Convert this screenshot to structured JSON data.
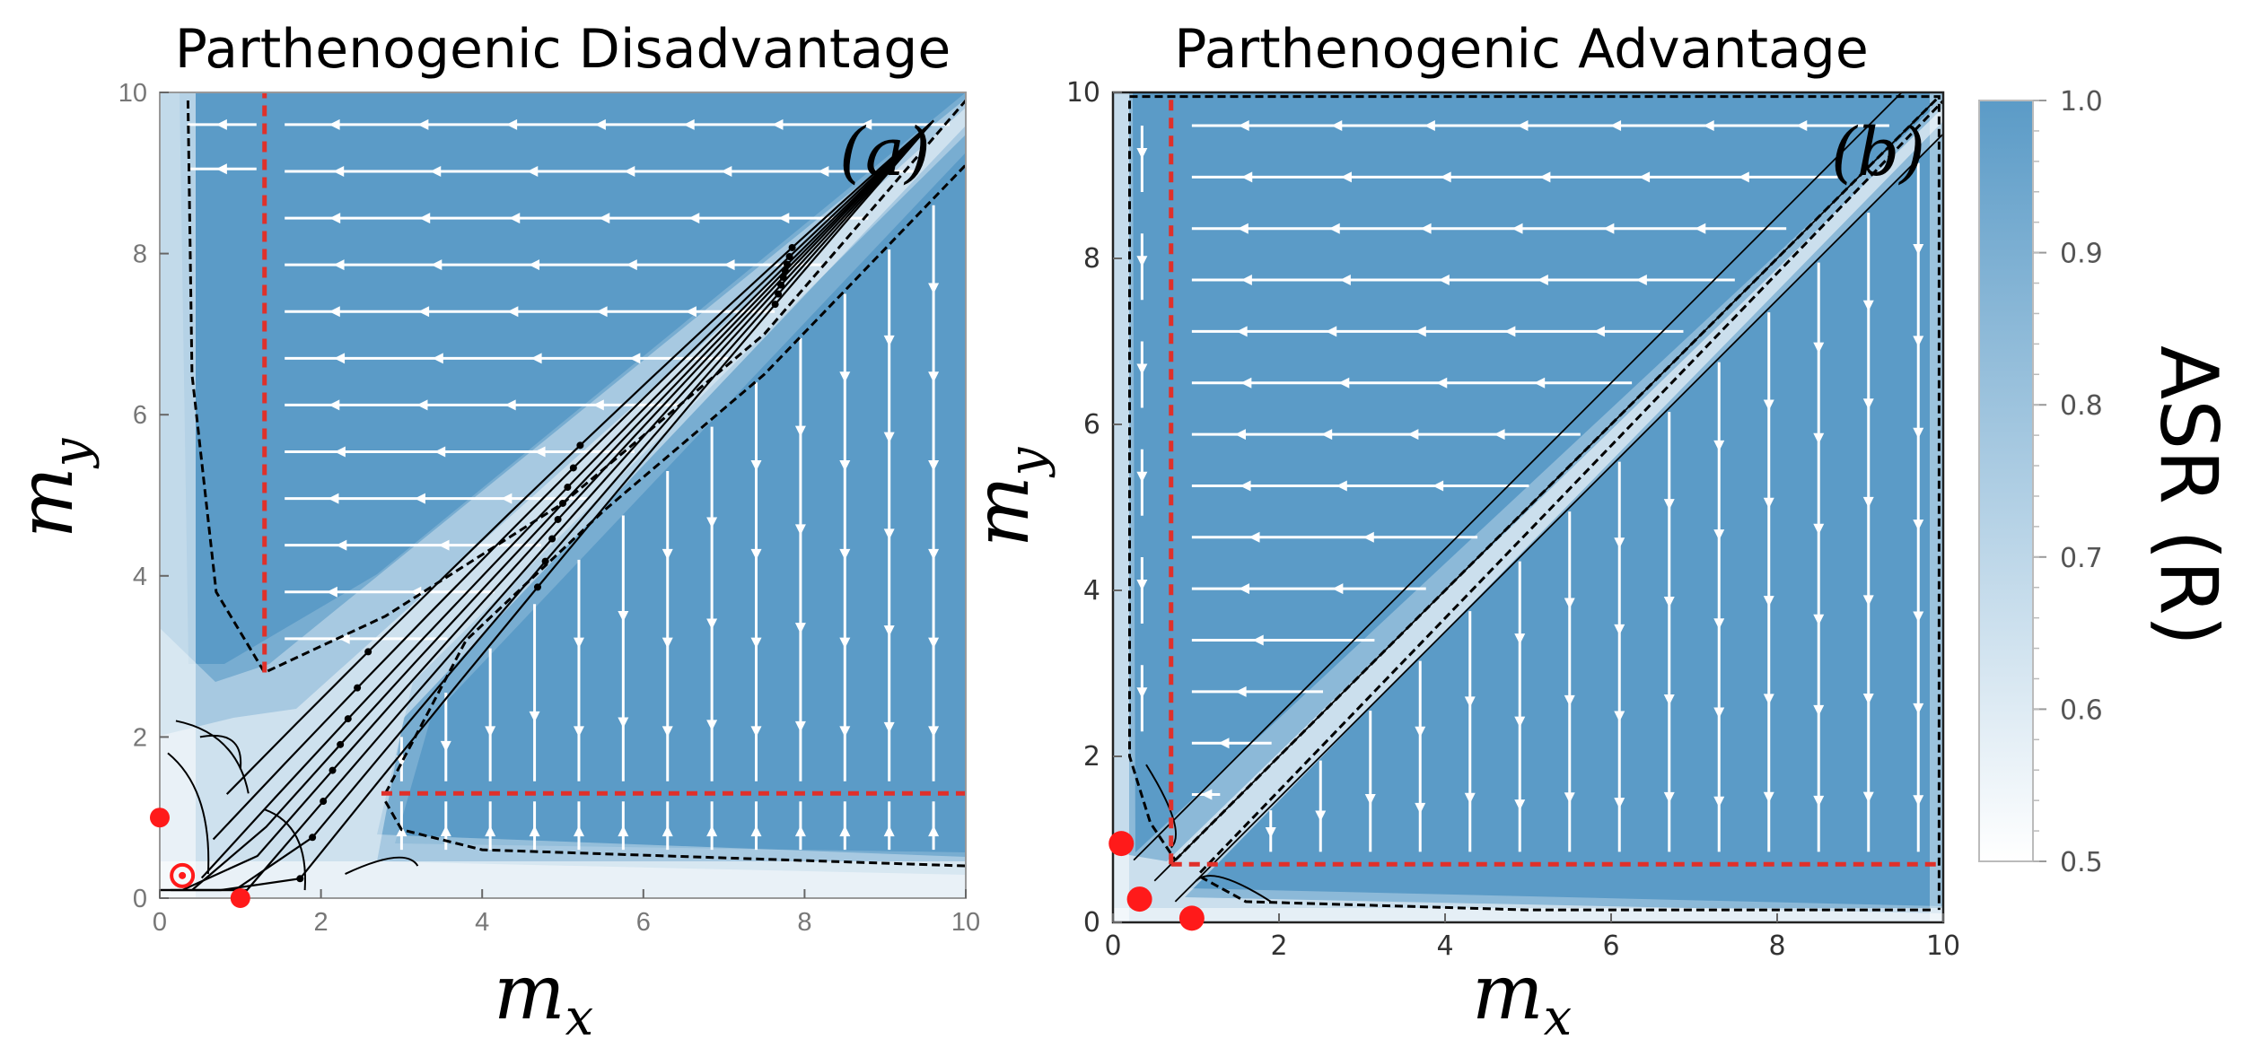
{
  "colors": {
    "field": "#5b9bc7",
    "field_light": "#ffffff",
    "reference_line": "#e0302a",
    "separatrix": "#000000",
    "fixed_point": "#ff1a1a",
    "stream_light": "#ffffff",
    "stream_dark": "#000000"
  },
  "chart_data": [
    {
      "type": "streamplot",
      "panel": "a",
      "title": "Parthenogenic Disadvantage",
      "panel_label": "(a)",
      "xlabel": "m",
      "xlabel_sub": "x",
      "ylabel": "m",
      "ylabel_sub": "y",
      "xlim": [
        0,
        10
      ],
      "ylim": [
        0,
        10
      ],
      "xticks": [
        "0",
        "2",
        "4",
        "6",
        "8",
        "10"
      ],
      "yticks": [
        "0",
        "2",
        "4",
        "6",
        "8",
        "10"
      ],
      "reference_lines": [
        {
          "orientation": "vertical",
          "x": 1.3,
          "y_from": 2.8,
          "y_to": 10
        },
        {
          "orientation": "horizontal",
          "y": 1.3,
          "x_from": 2.75,
          "x_to": 10
        }
      ],
      "fixed_points": [
        {
          "x": 0,
          "y": 1.0,
          "stable": true
        },
        {
          "x": 1.0,
          "y": 0,
          "stable": true
        },
        {
          "x": 0.28,
          "y": 0.28,
          "stable": false
        }
      ]
    },
    {
      "type": "streamplot",
      "panel": "b",
      "title": "Parthenogenic Advantage",
      "panel_label": "(b)",
      "xlabel": "m",
      "xlabel_sub": "x",
      "ylabel": "m",
      "ylabel_sub": "y",
      "xlim": [
        0,
        10
      ],
      "ylim": [
        0,
        10
      ],
      "xticks": [
        "0",
        "2",
        "4",
        "6",
        "8",
        "10"
      ],
      "yticks": [
        "0",
        "2",
        "4",
        "6",
        "8",
        "10"
      ],
      "reference_lines": [
        {
          "orientation": "vertical",
          "x": 0.7,
          "y_from": 0.7,
          "y_to": 10
        },
        {
          "orientation": "horizontal",
          "y": 0.7,
          "x_from": 0.7,
          "x_to": 10
        }
      ],
      "fixed_points": [
        {
          "x": 0.1,
          "y": 0.95,
          "stable": true
        },
        {
          "x": 0.95,
          "y": 0.05,
          "stable": true
        },
        {
          "x": 0.32,
          "y": 0.28,
          "stable": true
        }
      ]
    }
  ],
  "colorbar": {
    "label": "ASR (R)",
    "ticks": [
      "1.0",
      "0.9",
      "0.8",
      "0.7",
      "0.6",
      "0.5"
    ],
    "range": [
      0.5,
      1.0
    ]
  }
}
